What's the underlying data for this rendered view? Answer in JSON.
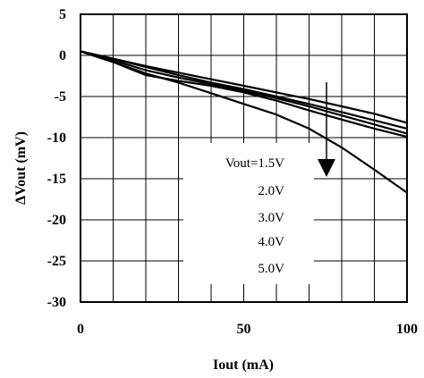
{
  "chart_data": {
    "type": "line",
    "title": "",
    "xlabel": "Iout (mA)",
    "ylabel": "ΔVout (mV)",
    "xlim": [
      0,
      100
    ],
    "ylim": [
      -30,
      5
    ],
    "xticks": [
      0,
      50,
      100
    ],
    "yticks": [
      5,
      0,
      -5,
      -10,
      -15,
      -20,
      -25,
      -30
    ],
    "x_minor_step": 10,
    "y_minor_step": 5,
    "grid": true,
    "line_color": "#000000",
    "legend_labels": [
      "Vout=1.5V",
      "2.0V",
      "3.0V",
      "4.0V",
      "5.0V"
    ],
    "arrow_direction": "down",
    "series": [
      {
        "name": "Vout=1.5V",
        "x": [
          0,
          10,
          20,
          30,
          40,
          50,
          60,
          70,
          80,
          90,
          100
        ],
        "y": [
          0.5,
          -0.4,
          -1.3,
          -2.1,
          -2.9,
          -3.7,
          -4.5,
          -5.3,
          -6.2,
          -7.1,
          -8.2
        ]
      },
      {
        "name": "2.0V",
        "x": [
          0,
          10,
          20,
          30,
          40,
          50,
          60,
          70,
          80,
          90,
          100
        ],
        "y": [
          0.5,
          -0.4,
          -1.4,
          -2.4,
          -3.3,
          -4.1,
          -5.0,
          -5.9,
          -6.9,
          -7.9,
          -8.9
        ]
      },
      {
        "name": "3.0V",
        "x": [
          0,
          10,
          20,
          30,
          40,
          50,
          60,
          70,
          80,
          90,
          100
        ],
        "y": [
          0.5,
          -0.6,
          -1.8,
          -2.7,
          -3.5,
          -4.3,
          -5.2,
          -6.2,
          -7.3,
          -8.4,
          -9.5
        ]
      },
      {
        "name": "4.0V",
        "x": [
          0,
          10,
          20,
          30,
          40,
          50,
          60,
          70,
          80,
          90,
          100
        ],
        "y": [
          0.5,
          -0.8,
          -2.4,
          -3.1,
          -3.7,
          -4.5,
          -5.5,
          -6.7,
          -7.8,
          -8.9,
          -9.9
        ]
      },
      {
        "name": "5.0V",
        "x": [
          0,
          10,
          20,
          30,
          40,
          50,
          60,
          70,
          80,
          90,
          100
        ],
        "y": [
          0.5,
          -0.8,
          -2.2,
          -3.3,
          -4.6,
          -5.9,
          -7.2,
          -8.9,
          -11.2,
          -13.9,
          -16.7
        ]
      }
    ]
  }
}
